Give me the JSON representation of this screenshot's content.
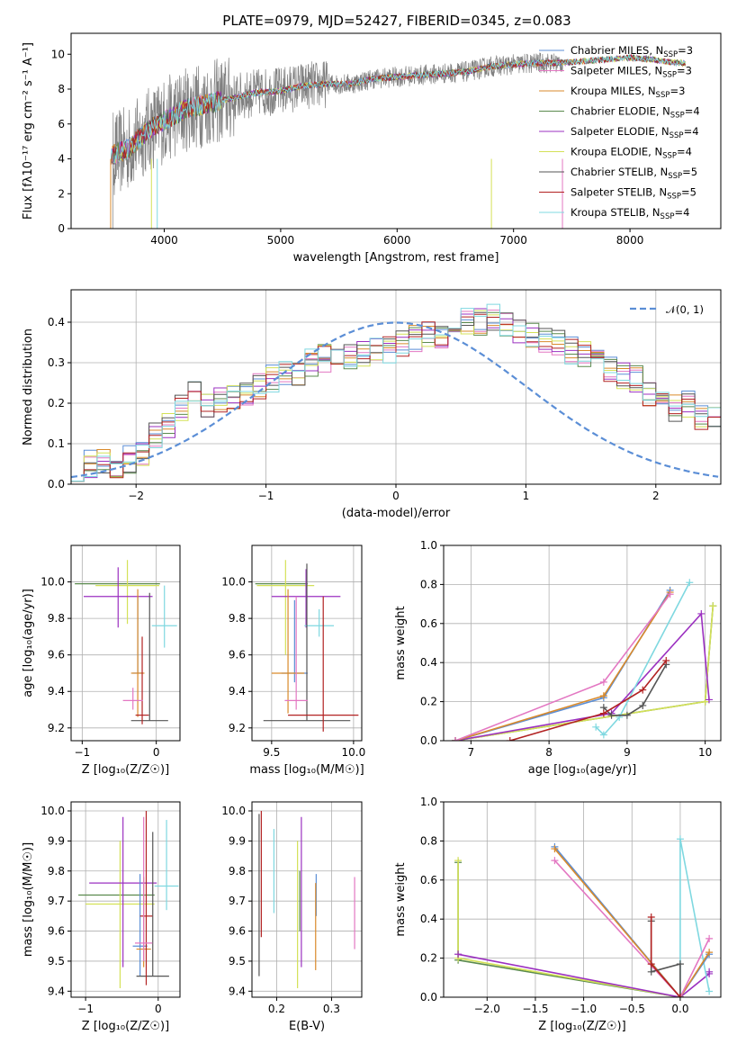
{
  "figure": {
    "title": "PLATE=0979, MJD=52427, FIBERID=0345, z=0.083"
  },
  "chart_data": [
    {
      "id": "spectrum",
      "type": "line",
      "title": "PLATE=0979, MJD=52427, FIBERID=0345, z=0.083",
      "xlabel": "wavelength [Angstrom, rest frame]",
      "ylabel": "Flux [fλ10⁻¹⁷ erg cm⁻² s⁻¹ A⁻¹]",
      "xlim": [
        3200,
        8780
      ],
      "ylim": [
        0,
        11.2
      ],
      "xticks": [
        4000,
        5000,
        6000,
        7000,
        8000
      ],
      "yticks": [
        0,
        2,
        4,
        6,
        8,
        10
      ],
      "grid": false,
      "legend_position": "top-right",
      "legend": [
        {
          "label": "Chabrier MILES, N",
          "sub": "SSP",
          "suffix": "=3",
          "color": "#5b8ed6"
        },
        {
          "label": "Salpeter MILES, N",
          "sub": "SSP",
          "suffix": "=3",
          "color": "#e377c2"
        },
        {
          "label": "Kroupa MILES, N",
          "sub": "SSP",
          "suffix": "=3",
          "color": "#d98a2b"
        },
        {
          "label": "Chabrier ELODIE, N",
          "sub": "SSP",
          "suffix": "=4",
          "color": "#5a8a4e"
        },
        {
          "label": "Salpeter ELODIE, N",
          "sub": "SSP",
          "suffix": "=4",
          "color": "#9b30c0"
        },
        {
          "label": "Kroupa ELODIE, N",
          "sub": "SSP",
          "suffix": "=4",
          "color": "#d4e157"
        },
        {
          "label": "Chabrier STELIB, N",
          "sub": "SSP",
          "suffix": "=5",
          "color": "#555555"
        },
        {
          "label": "Salpeter STELIB, N",
          "sub": "SSP",
          "suffix": "=5",
          "color": "#b22222"
        },
        {
          "label": "Kroupa STELIB, N",
          "sub": "SSP",
          "suffix": "=4",
          "color": "#7fd8e0"
        }
      ],
      "continuum": {
        "x": [
          3550,
          3700,
          3850,
          4000,
          4200,
          4400,
          4600,
          4800,
          5000,
          5200,
          5400,
          5600,
          5800,
          6000,
          6200,
          6400,
          6600,
          6800,
          7000,
          7200,
          7400,
          7600,
          7800,
          8000,
          8200,
          8400
        ],
        "y": [
          4.2,
          4.6,
          5.6,
          6.2,
          6.9,
          7.2,
          7.5,
          7.8,
          7.9,
          8.2,
          8.3,
          8.3,
          8.6,
          8.7,
          8.8,
          8.9,
          9.0,
          9.3,
          9.4,
          9.5,
          9.5,
          9.6,
          9.7,
          9.8,
          9.7,
          9.5
        ]
      },
      "observed": {
        "color": "#808080",
        "noise_high": 2.5,
        "noise_low": 0.3,
        "range": [
          3520,
          7430
        ]
      }
    },
    {
      "id": "residuals",
      "type": "bar",
      "xlabel": "(data-model)/error",
      "ylabel": "Normed distribution",
      "xlim": [
        -2.5,
        2.5
      ],
      "ylim": [
        0,
        0.48
      ],
      "xticks": [
        -2,
        -1,
        0,
        1,
        2
      ],
      "yticks": [
        0.0,
        0.1,
        0.2,
        0.3,
        0.4
      ],
      "grid": true,
      "legend_position": "top-right",
      "reference": {
        "label": "𝒩(0, 1)",
        "color": "#5b8ed6"
      },
      "bin_edges_start": -2.5,
      "bin_width": 0.1,
      "base_distribution": [
        0.04,
        0.05,
        0.06,
        0.05,
        0.06,
        0.08,
        0.12,
        0.14,
        0.19,
        0.22,
        0.2,
        0.21,
        0.21,
        0.23,
        0.24,
        0.26,
        0.28,
        0.27,
        0.3,
        0.31,
        0.3,
        0.31,
        0.32,
        0.33,
        0.33,
        0.35,
        0.36,
        0.37,
        0.37,
        0.38,
        0.4,
        0.4,
        0.41,
        0.39,
        0.38,
        0.37,
        0.36,
        0.35,
        0.33,
        0.32,
        0.3,
        0.28,
        0.27,
        0.26,
        0.22,
        0.21,
        0.19,
        0.2,
        0.17,
        0.16,
        0.15,
        0.13,
        0.11,
        0.1,
        0.09,
        0.08,
        0.07,
        0.06,
        0.05,
        0.05
      ]
    },
    {
      "id": "age-vs-Z",
      "type": "scatter",
      "xlabel": "Z [log₁₀(Z/Z☉)]",
      "ylabel": "age  [log₁₀(age/yr)]",
      "xlim": [
        -1.15,
        0.32
      ],
      "ylim": [
        9.13,
        10.2
      ],
      "xticks": [
        -1,
        0
      ],
      "xtick_labels": [
        "−1",
        "0"
      ],
      "yticks": [
        9.2,
        9.4,
        9.6,
        9.8,
        10.0
      ],
      "grid": true,
      "crosses": [
        {
          "color": "#5a8a4e",
          "x": -1.1,
          "x2": 0.05,
          "y": 9.99,
          "y1": 9.99,
          "y2": 9.99
        },
        {
          "color": "#d4e157",
          "x": -0.82,
          "x2": 0.04,
          "y": 9.98,
          "y1": 9.77,
          "y2": 10.12
        },
        {
          "color": "#9b30c0",
          "x": -0.98,
          "x2": -0.05,
          "y": 9.92,
          "y1": 9.75,
          "y2": 10.08
        },
        {
          "color": "#7fd8e0",
          "x": -0.06,
          "x2": 0.28,
          "y": 9.76,
          "y1": 9.64,
          "y2": 9.98
        },
        {
          "color": "#5b8ed6",
          "x": -0.32,
          "x2": -0.18,
          "y": 9.5,
          "y1": 9.5,
          "y2": 9.92
        },
        {
          "color": "#555555",
          "x": -0.34,
          "x2": 0.16,
          "y": 9.24,
          "y1": 9.24,
          "y2": 9.94
        },
        {
          "color": "#d98a2b",
          "x": -0.34,
          "x2": -0.16,
          "y": 9.5,
          "y1": 9.26,
          "y2": 9.96
        },
        {
          "color": "#b22222",
          "x": -0.28,
          "x2": -0.1,
          "y": 9.27,
          "y1": 9.22,
          "y2": 9.7
        },
        {
          "color": "#e377c2",
          "x": -0.45,
          "x2": -0.18,
          "y": 9.35,
          "y1": 9.3,
          "y2": 9.42
        }
      ]
    },
    {
      "id": "age-vs-mass",
      "type": "scatter",
      "xlabel": "mass [log₁₀(M/M☉)]",
      "ylabel": "",
      "xlim": [
        9.38,
        10.05
      ],
      "ylim": [
        9.13,
        10.2
      ],
      "xticks": [
        9.5,
        10.0
      ],
      "yticks": [
        9.2,
        9.4,
        9.6,
        9.8,
        10.0
      ],
      "grid": true,
      "crosses": [
        {
          "color": "#5a8a4e",
          "x": 9.4,
          "x2": 9.72,
          "y": 9.99,
          "y1": 9.99,
          "y2": 9.99
        },
        {
          "color": "#d4e157",
          "x": 9.41,
          "x2": 9.76,
          "y": 9.98,
          "y1": 9.6,
          "y2": 10.12
        },
        {
          "color": "#9b30c0",
          "x": 9.5,
          "x2": 9.92,
          "y": 9.92,
          "y1": 9.75,
          "y2": 10.07
        },
        {
          "color": "#7fd8e0",
          "x": 9.7,
          "x2": 9.88,
          "y": 9.76,
          "y1": 9.7,
          "y2": 9.85
        },
        {
          "color": "#5b8ed6",
          "x": 9.56,
          "x2": 9.72,
          "y": 9.5,
          "y1": 9.45,
          "y2": 9.9
        },
        {
          "color": "#555555",
          "x": 9.45,
          "x2": 9.98,
          "y": 9.24,
          "y1": 9.24,
          "y2": 10.1
        },
        {
          "color": "#d98a2b",
          "x": 9.5,
          "x2": 9.7,
          "y": 9.5,
          "y1": 9.28,
          "y2": 9.96
        },
        {
          "color": "#b22222",
          "x": 9.6,
          "x2": 10.03,
          "y": 9.27,
          "y1": 9.18,
          "y2": 9.92
        },
        {
          "color": "#e377c2",
          "x": 9.58,
          "x2": 9.72,
          "y": 9.35,
          "y1": 9.3,
          "y2": 9.92
        }
      ]
    },
    {
      "id": "weight-vs-age",
      "type": "line",
      "xlabel": "age  [log₁₀(age/yr)]",
      "ylabel": "mass weight",
      "xlim": [
        6.65,
        10.2
      ],
      "ylim": [
        0,
        1.0
      ],
      "xticks": [
        7,
        8,
        9,
        10
      ],
      "yticks": [
        0.0,
        0.2,
        0.4,
        0.6,
        0.8,
        1.0
      ],
      "grid": true,
      "series": [
        {
          "color": "#5a8a4e",
          "x": [
            6.8,
            10.0,
            10.1
          ],
          "y": [
            0.0,
            0.2,
            0.69
          ]
        },
        {
          "color": "#d4e157",
          "x": [
            6.8,
            10.0,
            10.1
          ],
          "y": [
            0.0,
            0.2,
            0.69
          ]
        },
        {
          "color": "#9b30c0",
          "x": [
            6.8,
            8.8,
            9.95,
            10.05
          ],
          "y": [
            0.0,
            0.14,
            0.65,
            0.21
          ]
        },
        {
          "color": "#7fd8e0",
          "x": [
            8.6,
            8.7,
            8.9,
            9.8
          ],
          "y": [
            0.07,
            0.03,
            0.12,
            0.81
          ]
        },
        {
          "color": "#5b8ed6",
          "x": [
            6.8,
            8.7,
            9.55
          ],
          "y": [
            0.0,
            0.22,
            0.77
          ]
        },
        {
          "color": "#d98a2b",
          "x": [
            6.8,
            8.7,
            9.55
          ],
          "y": [
            0.0,
            0.23,
            0.76
          ]
        },
        {
          "color": "#e377c2",
          "x": [
            6.8,
            8.7,
            9.55
          ],
          "y": [
            0.0,
            0.3,
            0.75
          ]
        },
        {
          "color": "#555555",
          "x": [
            8.7,
            8.8,
            9.0,
            9.2,
            9.5
          ],
          "y": [
            0.17,
            0.13,
            0.13,
            0.18,
            0.39
          ]
        },
        {
          "color": "#b22222",
          "x": [
            7.5,
            8.7,
            9.2,
            9.5
          ],
          "y": [
            0.0,
            0.14,
            0.26,
            0.41
          ]
        }
      ]
    },
    {
      "id": "mass-vs-Z",
      "type": "scatter",
      "xlabel": "Z [log₁₀(Z/Z☉)]",
      "ylabel": "mass [log₁₀(M/M☉)]",
      "xlim": [
        -1.2,
        0.3
      ],
      "ylim": [
        9.38,
        10.03
      ],
      "xticks": [
        -1,
        0
      ],
      "xtick_labels": [
        "−1",
        "0"
      ],
      "yticks": [
        9.4,
        9.5,
        9.6,
        9.7,
        9.8,
        9.9,
        10.0
      ],
      "grid": true,
      "crosses": [
        {
          "color": "#5a8a4e",
          "x": -1.1,
          "x2": -0.05,
          "y": 9.72,
          "y1": 9.72,
          "y2": 9.72
        },
        {
          "color": "#d4e157",
          "x": -1.0,
          "x2": -0.05,
          "y": 9.69,
          "y1": 9.41,
          "y2": 9.9
        },
        {
          "color": "#9b30c0",
          "x": -0.95,
          "x2": -0.02,
          "y": 9.76,
          "y1": 9.48,
          "y2": 9.98
        },
        {
          "color": "#7fd8e0",
          "x": -0.05,
          "x2": 0.28,
          "y": 9.75,
          "y1": 9.67,
          "y2": 9.97
        },
        {
          "color": "#5b8ed6",
          "x": -0.35,
          "x2": -0.15,
          "y": 9.55,
          "y1": 9.45,
          "y2": 9.79
        },
        {
          "color": "#555555",
          "x": -0.3,
          "x2": 0.15,
          "y": 9.45,
          "y1": 9.45,
          "y2": 9.93
        },
        {
          "color": "#d98a2b",
          "x": -0.3,
          "x2": -0.1,
          "y": 9.54,
          "y1": 9.48,
          "y2": 9.78
        },
        {
          "color": "#b22222",
          "x": -0.25,
          "x2": -0.08,
          "y": 9.65,
          "y1": 9.42,
          "y2": 10.0
        },
        {
          "color": "#e377c2",
          "x": -0.32,
          "x2": -0.08,
          "y": 9.56,
          "y1": 9.5,
          "y2": 9.98
        }
      ]
    },
    {
      "id": "mass-vs-EBV",
      "type": "scatter",
      "xlabel": "E(B-V)",
      "ylabel": "",
      "xlim": [
        0.155,
        0.355
      ],
      "ylim": [
        9.38,
        10.03
      ],
      "xticks": [
        0.2,
        0.3
      ],
      "yticks": [
        9.4,
        9.5,
        9.6,
        9.7,
        9.8,
        9.9,
        10.0
      ],
      "grid": true,
      "crosses": [
        {
          "color": "#555555",
          "x": 0.168,
          "x2": 0.168,
          "y": 9.72,
          "y1": 9.45,
          "y2": 9.99
        },
        {
          "color": "#b22222",
          "x": 0.172,
          "x2": 0.172,
          "y": 9.79,
          "y1": 9.58,
          "y2": 10.0
        },
        {
          "color": "#7fd8e0",
          "x": 0.195,
          "x2": 0.195,
          "y": 9.75,
          "y1": 9.66,
          "y2": 9.94
        },
        {
          "color": "#d4e157",
          "x": 0.238,
          "x2": 0.238,
          "y": 9.69,
          "y1": 9.41,
          "y2": 9.9
        },
        {
          "color": "#9b30c0",
          "x": 0.245,
          "x2": 0.245,
          "y": 9.76,
          "y1": 9.48,
          "y2": 9.98
        },
        {
          "color": "#5a8a4e",
          "x": 0.242,
          "x2": 0.242,
          "y": 9.72,
          "y1": 9.6,
          "y2": 9.8
        },
        {
          "color": "#5b8ed6",
          "x": 0.272,
          "x2": 0.272,
          "y": 9.72,
          "y1": 9.65,
          "y2": 9.79
        },
        {
          "color": "#d98a2b",
          "x": 0.271,
          "x2": 0.271,
          "y": 9.62,
          "y1": 9.47,
          "y2": 9.76
        },
        {
          "color": "#e377c2",
          "x": 0.342,
          "x2": 0.342,
          "y": 9.66,
          "y1": 9.54,
          "y2": 9.78
        }
      ]
    },
    {
      "id": "weight-vs-Z",
      "type": "line",
      "xlabel": "Z [log₁₀(Z/Z☉)]",
      "ylabel": "mass weight",
      "xlim": [
        -2.45,
        0.42
      ],
      "ylim": [
        0,
        1.0
      ],
      "xticks": [
        -2.0,
        -1.5,
        -1.0,
        -0.5,
        0.0
      ],
      "xtick_labels": [
        "−2.0",
        "−1.5",
        "−1.0",
        "−0.5",
        "0.0"
      ],
      "yticks": [
        0.0,
        0.2,
        0.4,
        0.6,
        0.8,
        1.0
      ],
      "grid": true,
      "series": [
        {
          "color": "#5a8a4e",
          "x": [
            -2.3,
            -2.3,
            0.0
          ],
          "y": [
            0.69,
            0.19,
            0.0
          ]
        },
        {
          "color": "#d4e157",
          "x": [
            -2.3,
            -2.3,
            0.0
          ],
          "y": [
            0.7,
            0.2,
            0.0
          ]
        },
        {
          "color": "#9b30c0",
          "x": [
            -2.3,
            0.0,
            0.3,
            0.3
          ],
          "y": [
            0.22,
            0.0,
            0.12,
            0.13
          ]
        },
        {
          "color": "#7fd8e0",
          "x": [
            0.0,
            0.0,
            0.3
          ],
          "y": [
            0.0,
            0.81,
            0.03
          ]
        },
        {
          "color": "#5b8ed6",
          "x": [
            -1.3,
            0.0,
            0.3
          ],
          "y": [
            0.77,
            0.0,
            0.22
          ]
        },
        {
          "color": "#d98a2b",
          "x": [
            -1.3,
            0.0,
            0.3
          ],
          "y": [
            0.76,
            0.0,
            0.23
          ]
        },
        {
          "color": "#e377c2",
          "x": [
            -1.3,
            0.0,
            0.3
          ],
          "y": [
            0.7,
            0.0,
            0.3
          ]
        },
        {
          "color": "#555555",
          "x": [
            -0.3,
            -0.3,
            0.0,
            0.0
          ],
          "y": [
            0.39,
            0.13,
            0.17,
            0.0
          ]
        },
        {
          "color": "#b22222",
          "x": [
            -0.3,
            -0.3,
            0.0
          ],
          "y": [
            0.41,
            0.17,
            0.0
          ]
        }
      ]
    }
  ]
}
